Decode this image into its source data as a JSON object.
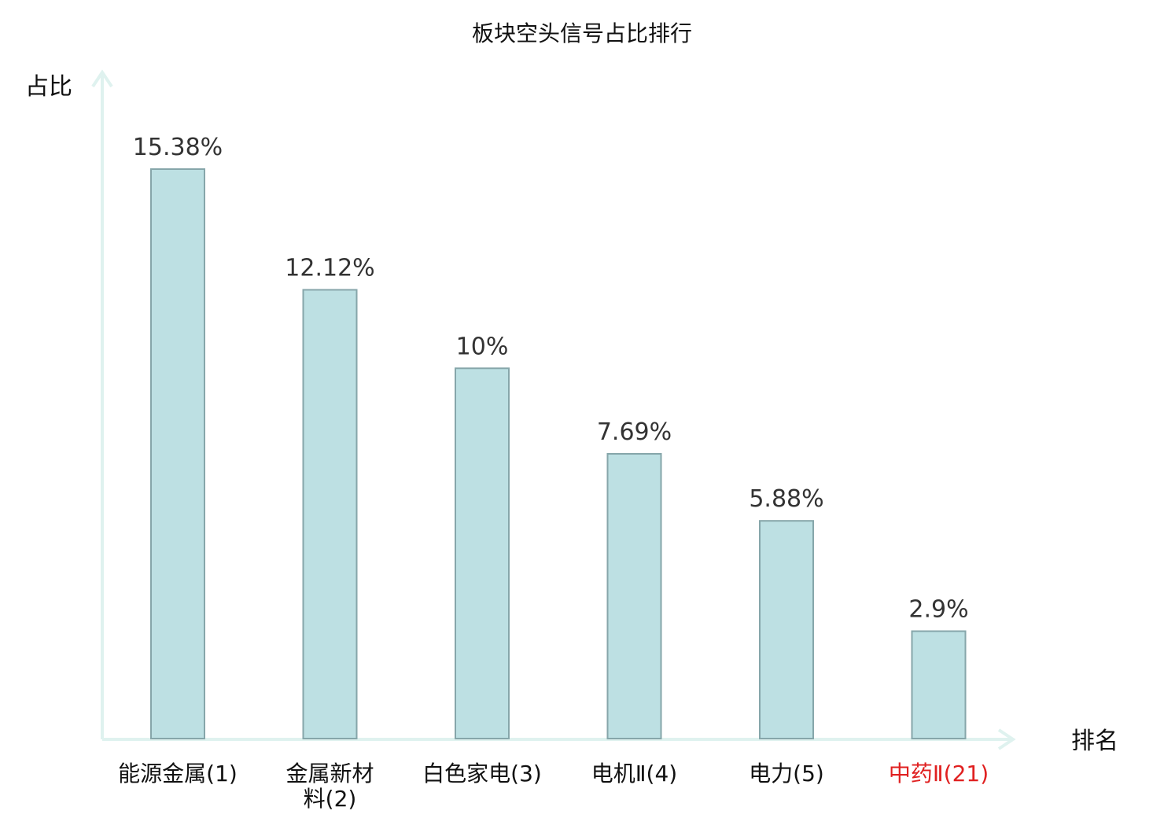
{
  "chart_data": {
    "type": "bar",
    "title": "板块空头信号占比排行",
    "ylabel": "占比",
    "xlabel": "排名",
    "categories": [
      [
        "能源金属(1)"
      ],
      [
        "金属新材",
        "料(2)"
      ],
      [
        "白色家电(3)"
      ],
      [
        "电机Ⅱ(4)"
      ],
      [
        "电力(5)"
      ],
      [
        "中药Ⅱ(21)"
      ]
    ],
    "values": [
      15.38,
      12.12,
      10,
      7.69,
      5.88,
      2.9
    ],
    "value_labels": [
      "15.38%",
      "12.12%",
      "10%",
      "7.69%",
      "5.88%",
      "2.9%"
    ],
    "highlight_index": 5,
    "grid": false,
    "colors": {
      "bar_fill": "#bde0e3",
      "bar_stroke": "#86a6aa",
      "axis": "#dff2ef",
      "category_text": "#111111",
      "highlight_text": "#e02020"
    }
  }
}
